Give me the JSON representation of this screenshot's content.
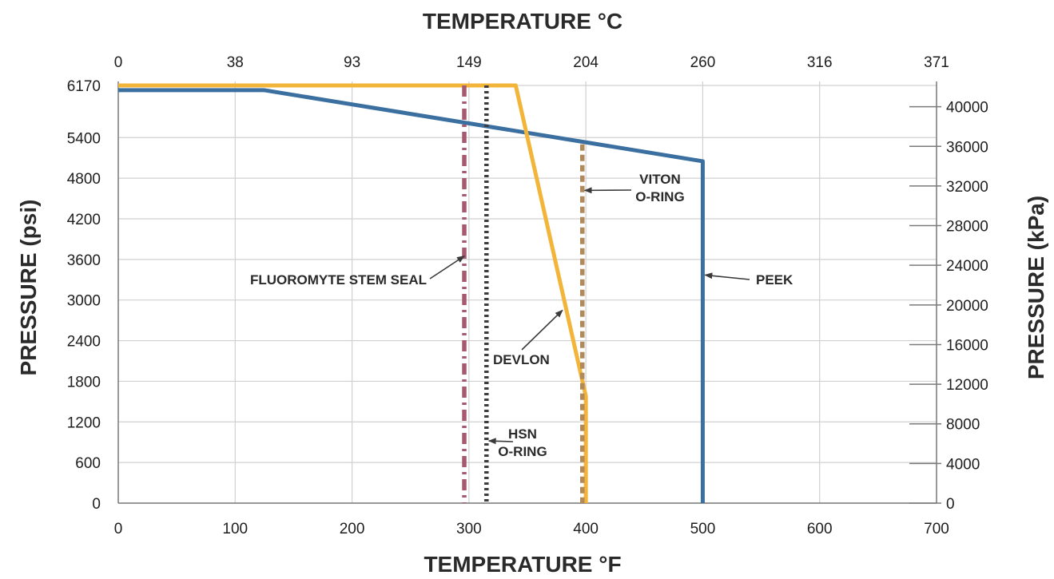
{
  "chart_data": {
    "type": "line",
    "title": "",
    "xlabel": "TEMPERATURE °F",
    "x2label": "TEMPERATURE °C",
    "ylabel": "PRESSURE (psi)",
    "y2label": "PRESSURE (kPa)",
    "xlim": [
      0,
      700
    ],
    "ylim": [
      0,
      6170
    ],
    "grid": true,
    "x_ticks": [
      0,
      100,
      200,
      300,
      400,
      500,
      600,
      700
    ],
    "x2_ticks": [
      "0",
      "38",
      "93",
      "149",
      "204",
      "260",
      "316",
      "371"
    ],
    "y_ticks": [
      0,
      600,
      1200,
      1800,
      2400,
      3000,
      3600,
      4200,
      4800,
      5400,
      6170
    ],
    "y2_ticks": [
      0,
      4000,
      8000,
      12000,
      16000,
      20000,
      24000,
      28000,
      32000,
      36000,
      40000
    ],
    "colors": {
      "peek": "#3a6fa0",
      "devlon": "#f2b53a",
      "fluoromyte": "#a65a6e",
      "hsn": "#3c3c3c",
      "viton": "#b08a5a",
      "grid": "#d0d0d0",
      "axis": "#7a7a7a"
    },
    "series": [
      {
        "name": "PEEK",
        "key": "peek",
        "style": "solid",
        "x": [
          0,
          125,
          500,
          500
        ],
        "y": [
          6100,
          6100,
          5050,
          0
        ]
      },
      {
        "name": "DEVLON",
        "key": "devlon",
        "style": "solid",
        "x": [
          0,
          340,
          400,
          400
        ],
        "y": [
          6170,
          6170,
          1580,
          0
        ]
      },
      {
        "name": "FLUOROMYTE STEM SEAL",
        "key": "fluoromyte",
        "style": "dashdot",
        "x": [
          296,
          296
        ],
        "y": [
          6170,
          0
        ]
      },
      {
        "name": "HSN O-RING",
        "key": "hsn",
        "style": "dotted",
        "x": [
          315,
          315
        ],
        "y": [
          6170,
          0
        ]
      },
      {
        "name": "VITON O-RING",
        "key": "viton",
        "style": "dashed",
        "x": [
          397,
          397
        ],
        "y": [
          5300,
          0
        ]
      }
    ],
    "annotations": [
      {
        "lines": [
          "FLUOROMYTE STEM SEAL"
        ],
        "target_x": 296,
        "target_y": 3650
      },
      {
        "lines": [
          "DEVLON"
        ],
        "target_x": 380,
        "target_y": 2850
      },
      {
        "lines": [
          "HSN",
          "O-RING"
        ],
        "target_x": 317,
        "target_y": 920
      },
      {
        "lines": [
          "VITON",
          "O-RING"
        ],
        "target_x": 399,
        "target_y": 4620
      },
      {
        "lines": [
          "PEEK"
        ],
        "target_x": 502,
        "target_y": 3370
      }
    ]
  }
}
